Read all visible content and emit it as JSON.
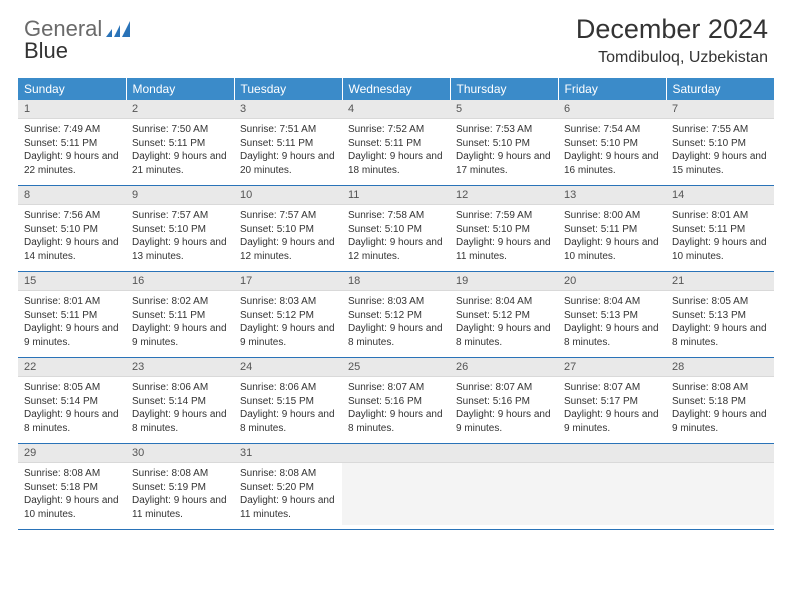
{
  "logo": {
    "text1": "General",
    "text2": "Blue"
  },
  "title": "December 2024",
  "location": "Tomdibuloq, Uzbekistan",
  "colors": {
    "header_bg": "#3b8bc9",
    "header_text": "#ffffff",
    "daynum_bg": "#e9e9e9",
    "border": "#2a73b8",
    "logo_gray": "#6a6a6a",
    "logo_blue": "#2a73b8",
    "body_text": "#333333"
  },
  "weekdays": [
    "Sunday",
    "Monday",
    "Tuesday",
    "Wednesday",
    "Thursday",
    "Friday",
    "Saturday"
  ],
  "weeks": [
    [
      {
        "n": "1",
        "sr": "7:49 AM",
        "ss": "5:11 PM",
        "dl": "9 hours and 22 minutes."
      },
      {
        "n": "2",
        "sr": "7:50 AM",
        "ss": "5:11 PM",
        "dl": "9 hours and 21 minutes."
      },
      {
        "n": "3",
        "sr": "7:51 AM",
        "ss": "5:11 PM",
        "dl": "9 hours and 20 minutes."
      },
      {
        "n": "4",
        "sr": "7:52 AM",
        "ss": "5:11 PM",
        "dl": "9 hours and 18 minutes."
      },
      {
        "n": "5",
        "sr": "7:53 AM",
        "ss": "5:10 PM",
        "dl": "9 hours and 17 minutes."
      },
      {
        "n": "6",
        "sr": "7:54 AM",
        "ss": "5:10 PM",
        "dl": "9 hours and 16 minutes."
      },
      {
        "n": "7",
        "sr": "7:55 AM",
        "ss": "5:10 PM",
        "dl": "9 hours and 15 minutes."
      }
    ],
    [
      {
        "n": "8",
        "sr": "7:56 AM",
        "ss": "5:10 PM",
        "dl": "9 hours and 14 minutes."
      },
      {
        "n": "9",
        "sr": "7:57 AM",
        "ss": "5:10 PM",
        "dl": "9 hours and 13 minutes."
      },
      {
        "n": "10",
        "sr": "7:57 AM",
        "ss": "5:10 PM",
        "dl": "9 hours and 12 minutes."
      },
      {
        "n": "11",
        "sr": "7:58 AM",
        "ss": "5:10 PM",
        "dl": "9 hours and 12 minutes."
      },
      {
        "n": "12",
        "sr": "7:59 AM",
        "ss": "5:10 PM",
        "dl": "9 hours and 11 minutes."
      },
      {
        "n": "13",
        "sr": "8:00 AM",
        "ss": "5:11 PM",
        "dl": "9 hours and 10 minutes."
      },
      {
        "n": "14",
        "sr": "8:01 AM",
        "ss": "5:11 PM",
        "dl": "9 hours and 10 minutes."
      }
    ],
    [
      {
        "n": "15",
        "sr": "8:01 AM",
        "ss": "5:11 PM",
        "dl": "9 hours and 9 minutes."
      },
      {
        "n": "16",
        "sr": "8:02 AM",
        "ss": "5:11 PM",
        "dl": "9 hours and 9 minutes."
      },
      {
        "n": "17",
        "sr": "8:03 AM",
        "ss": "5:12 PM",
        "dl": "9 hours and 9 minutes."
      },
      {
        "n": "18",
        "sr": "8:03 AM",
        "ss": "5:12 PM",
        "dl": "9 hours and 8 minutes."
      },
      {
        "n": "19",
        "sr": "8:04 AM",
        "ss": "5:12 PM",
        "dl": "9 hours and 8 minutes."
      },
      {
        "n": "20",
        "sr": "8:04 AM",
        "ss": "5:13 PM",
        "dl": "9 hours and 8 minutes."
      },
      {
        "n": "21",
        "sr": "8:05 AM",
        "ss": "5:13 PM",
        "dl": "9 hours and 8 minutes."
      }
    ],
    [
      {
        "n": "22",
        "sr": "8:05 AM",
        "ss": "5:14 PM",
        "dl": "9 hours and 8 minutes."
      },
      {
        "n": "23",
        "sr": "8:06 AM",
        "ss": "5:14 PM",
        "dl": "9 hours and 8 minutes."
      },
      {
        "n": "24",
        "sr": "8:06 AM",
        "ss": "5:15 PM",
        "dl": "9 hours and 8 minutes."
      },
      {
        "n": "25",
        "sr": "8:07 AM",
        "ss": "5:16 PM",
        "dl": "9 hours and 8 minutes."
      },
      {
        "n": "26",
        "sr": "8:07 AM",
        "ss": "5:16 PM",
        "dl": "9 hours and 9 minutes."
      },
      {
        "n": "27",
        "sr": "8:07 AM",
        "ss": "5:17 PM",
        "dl": "9 hours and 9 minutes."
      },
      {
        "n": "28",
        "sr": "8:08 AM",
        "ss": "5:18 PM",
        "dl": "9 hours and 9 minutes."
      }
    ],
    [
      {
        "n": "29",
        "sr": "8:08 AM",
        "ss": "5:18 PM",
        "dl": "9 hours and 10 minutes."
      },
      {
        "n": "30",
        "sr": "8:08 AM",
        "ss": "5:19 PM",
        "dl": "9 hours and 11 minutes."
      },
      {
        "n": "31",
        "sr": "8:08 AM",
        "ss": "5:20 PM",
        "dl": "9 hours and 11 minutes."
      },
      null,
      null,
      null,
      null
    ]
  ],
  "labels": {
    "sunrise": "Sunrise:",
    "sunset": "Sunset:",
    "daylight": "Daylight:"
  }
}
